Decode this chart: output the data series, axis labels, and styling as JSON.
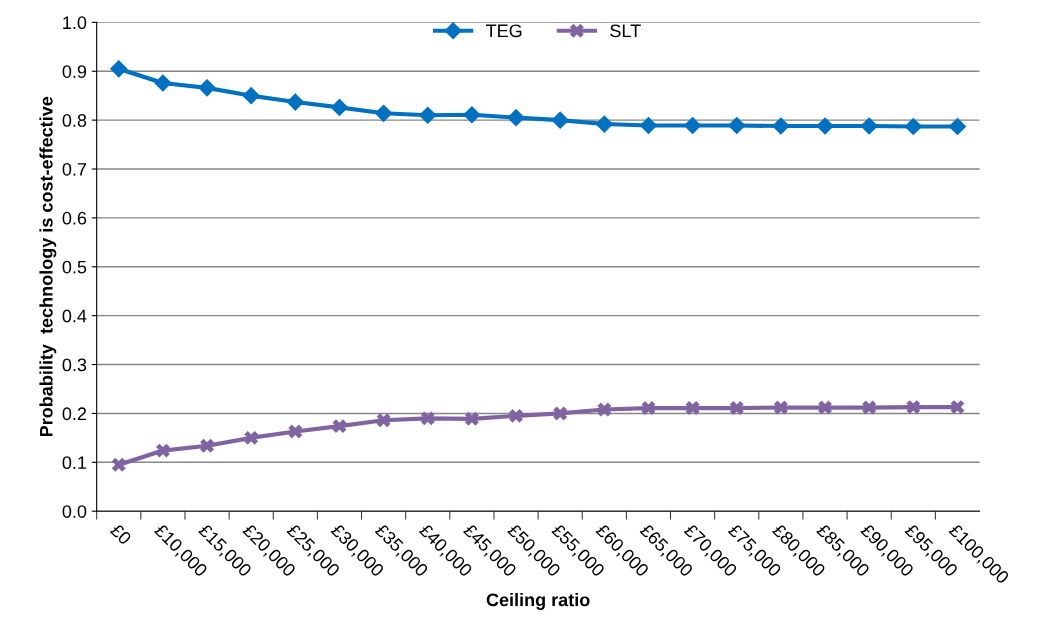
{
  "chart_data": {
    "type": "line",
    "xlabel": "Ceiling ratio",
    "ylabel": "Probability  technology is cost-effective",
    "categories": [
      "£0",
      "£10,000",
      "£15,000",
      "£20,000",
      "£25,000",
      "£30,000",
      "£35,000",
      "£40,000",
      "£45,000",
      "£50,000",
      "£55,000",
      "£60,000",
      "£65,000",
      "£70,000",
      "£75,000",
      "£80,000",
      "£85,000",
      "£90,000",
      "£95,000",
      "£100,000"
    ],
    "series": [
      {
        "name": "TEG",
        "color": "#0070c0",
        "marker": "diamond",
        "values": [
          0.905,
          0.876,
          0.866,
          0.85,
          0.837,
          0.826,
          0.814,
          0.81,
          0.811,
          0.805,
          0.8,
          0.792,
          0.789,
          0.789,
          0.789,
          0.788,
          0.788,
          0.788,
          0.787,
          0.787
        ]
      },
      {
        "name": "SLT",
        "color": "#8064a2",
        "marker": "cross",
        "values": [
          0.095,
          0.124,
          0.134,
          0.15,
          0.163,
          0.174,
          0.186,
          0.19,
          0.189,
          0.195,
          0.2,
          0.208,
          0.211,
          0.211,
          0.211,
          0.212,
          0.212,
          0.212,
          0.213,
          0.213
        ]
      }
    ],
    "ylim": [
      0,
      1
    ],
    "yticks": [
      {
        "value": 0,
        "label": "0.0"
      },
      {
        "value": 0.1,
        "label": "0.1"
      },
      {
        "value": 0.2,
        "label": "0.2"
      },
      {
        "value": 0.3,
        "label": "0.3"
      },
      {
        "value": 0.4,
        "label": "0.4"
      },
      {
        "value": 0.5,
        "label": "0.5"
      },
      {
        "value": 0.6,
        "label": "0.6"
      },
      {
        "value": 0.7,
        "label": "0.7"
      },
      {
        "value": 0.8,
        "label": "0.8"
      },
      {
        "value": 0.9,
        "label": "0.9"
      },
      {
        "value": 1,
        "label": "1.0"
      }
    ],
    "grid": "y",
    "legend": "top",
    "line_style": "solid"
  }
}
